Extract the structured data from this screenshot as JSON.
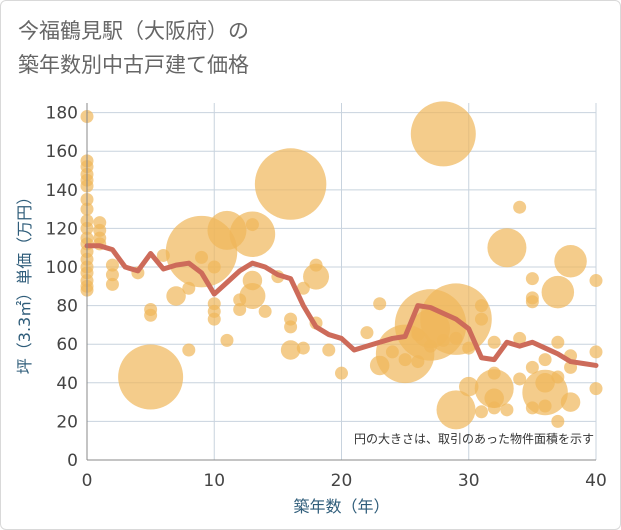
{
  "title_line1": "今福鶴見駅（大阪府）の",
  "title_line2": "築年数別中古戸建て価格",
  "chart_data": {
    "type": "scatter",
    "xlabel": "築年数（年）",
    "ylabel": "坪（3.3㎡）単価（万円）",
    "note": "円の大きさは、取引のあった物件面積を示す",
    "xlim": [
      0,
      40
    ],
    "ylim": [
      0,
      185
    ],
    "x_ticks": [
      0,
      10,
      20,
      30,
      40
    ],
    "y_ticks": [
      0,
      20,
      40,
      60,
      80,
      100,
      120,
      140,
      160,
      180
    ],
    "grid": true,
    "colors": {
      "bubble": "#f0b75a",
      "line": "#cd6b5a",
      "grid": "#c8d3de",
      "axis": "#888888"
    },
    "points": [
      {
        "x": 0,
        "y": 178,
        "s": 1
      },
      {
        "x": 0,
        "y": 155,
        "s": 1
      },
      {
        "x": 0,
        "y": 152,
        "s": 1
      },
      {
        "x": 0,
        "y": 148,
        "s": 1
      },
      {
        "x": 0,
        "y": 145,
        "s": 1
      },
      {
        "x": 0,
        "y": 142,
        "s": 1
      },
      {
        "x": 0,
        "y": 135,
        "s": 1
      },
      {
        "x": 0,
        "y": 130,
        "s": 1
      },
      {
        "x": 0,
        "y": 124,
        "s": 1
      },
      {
        "x": 0,
        "y": 120,
        "s": 1
      },
      {
        "x": 0,
        "y": 115,
        "s": 1
      },
      {
        "x": 0,
        "y": 112,
        "s": 1
      },
      {
        "x": 0,
        "y": 108,
        "s": 1
      },
      {
        "x": 0,
        "y": 104,
        "s": 1
      },
      {
        "x": 0,
        "y": 100,
        "s": 1
      },
      {
        "x": 0,
        "y": 97,
        "s": 1
      },
      {
        "x": 0,
        "y": 93,
        "s": 1
      },
      {
        "x": 0,
        "y": 90,
        "s": 1
      },
      {
        "x": 0,
        "y": 88,
        "s": 1
      },
      {
        "x": 1,
        "y": 123,
        "s": 1
      },
      {
        "x": 1,
        "y": 119,
        "s": 1
      },
      {
        "x": 1,
        "y": 115,
        "s": 1
      },
      {
        "x": 1,
        "y": 112,
        "s": 1
      },
      {
        "x": 2,
        "y": 101,
        "s": 1
      },
      {
        "x": 2,
        "y": 96,
        "s": 1
      },
      {
        "x": 2,
        "y": 91,
        "s": 1
      },
      {
        "x": 4,
        "y": 97,
        "s": 1
      },
      {
        "x": 5,
        "y": 78,
        "s": 1
      },
      {
        "x": 5,
        "y": 75,
        "s": 1
      },
      {
        "x": 5,
        "y": 43,
        "s": 5
      },
      {
        "x": 6,
        "y": 106,
        "s": 1
      },
      {
        "x": 7,
        "y": 85,
        "s": 1.5
      },
      {
        "x": 8,
        "y": 89,
        "s": 1
      },
      {
        "x": 8,
        "y": 57,
        "s": 1
      },
      {
        "x": 9,
        "y": 108,
        "s": 5.5
      },
      {
        "x": 9,
        "y": 105,
        "s": 1
      },
      {
        "x": 10,
        "y": 100,
        "s": 1
      },
      {
        "x": 10,
        "y": 81,
        "s": 1
      },
      {
        "x": 10,
        "y": 77,
        "s": 1
      },
      {
        "x": 10,
        "y": 73,
        "s": 1
      },
      {
        "x": 11,
        "y": 119,
        "s": 3
      },
      {
        "x": 11,
        "y": 62,
        "s": 1
      },
      {
        "x": 12,
        "y": 83,
        "s": 1
      },
      {
        "x": 12,
        "y": 78,
        "s": 1
      },
      {
        "x": 13,
        "y": 117,
        "s": 3.5
      },
      {
        "x": 13,
        "y": 122,
        "s": 1
      },
      {
        "x": 13,
        "y": 93,
        "s": 1.5
      },
      {
        "x": 13,
        "y": 85,
        "s": 2
      },
      {
        "x": 14,
        "y": 77,
        "s": 1
      },
      {
        "x": 15,
        "y": 95,
        "s": 1
      },
      {
        "x": 16,
        "y": 143,
        "s": 5.5
      },
      {
        "x": 16,
        "y": 73,
        "s": 1
      },
      {
        "x": 16,
        "y": 69,
        "s": 1
      },
      {
        "x": 16,
        "y": 57,
        "s": 1.5
      },
      {
        "x": 17,
        "y": 89,
        "s": 1
      },
      {
        "x": 17,
        "y": 58,
        "s": 1
      },
      {
        "x": 18,
        "y": 101,
        "s": 1
      },
      {
        "x": 18,
        "y": 95,
        "s": 2
      },
      {
        "x": 18,
        "y": 71,
        "s": 1
      },
      {
        "x": 19,
        "y": 57,
        "s": 1
      },
      {
        "x": 20,
        "y": 45,
        "s": 1
      },
      {
        "x": 22,
        "y": 66,
        "s": 1
      },
      {
        "x": 23,
        "y": 81,
        "s": 1
      },
      {
        "x": 23,
        "y": 49,
        "s": 1.5
      },
      {
        "x": 24,
        "y": 56,
        "s": 1
      },
      {
        "x": 25,
        "y": 55,
        "s": 4.5
      },
      {
        "x": 25,
        "y": 52,
        "s": 1
      },
      {
        "x": 26,
        "y": 65,
        "s": 1
      },
      {
        "x": 26,
        "y": 51,
        "s": 1
      },
      {
        "x": 27,
        "y": 70,
        "s": 5.5
      },
      {
        "x": 27,
        "y": 68,
        "s": 3
      },
      {
        "x": 27,
        "y": 59,
        "s": 1
      },
      {
        "x": 28,
        "y": 169,
        "s": 5
      },
      {
        "x": 28,
        "y": 62,
        "s": 1
      },
      {
        "x": 29,
        "y": 73,
        "s": 5.5
      },
      {
        "x": 29,
        "y": 63,
        "s": 1
      },
      {
        "x": 29,
        "y": 26,
        "s": 3
      },
      {
        "x": 30,
        "y": 38,
        "s": 1.5
      },
      {
        "x": 30,
        "y": 58,
        "s": 1
      },
      {
        "x": 31,
        "y": 80,
        "s": 1
      },
      {
        "x": 31,
        "y": 73,
        "s": 1
      },
      {
        "x": 31,
        "y": 25,
        "s": 1
      },
      {
        "x": 32,
        "y": 61,
        "s": 1
      },
      {
        "x": 32,
        "y": 45,
        "s": 1
      },
      {
        "x": 32,
        "y": 37,
        "s": 3
      },
      {
        "x": 32,
        "y": 32,
        "s": 1.5
      },
      {
        "x": 32,
        "y": 27,
        "s": 1
      },
      {
        "x": 33,
        "y": 110,
        "s": 3
      },
      {
        "x": 33,
        "y": 26,
        "s": 1
      },
      {
        "x": 34,
        "y": 131,
        "s": 1
      },
      {
        "x": 34,
        "y": 63,
        "s": 1
      },
      {
        "x": 34,
        "y": 42,
        "s": 1
      },
      {
        "x": 35,
        "y": 94,
        "s": 1
      },
      {
        "x": 35,
        "y": 84,
        "s": 1
      },
      {
        "x": 35,
        "y": 82,
        "s": 1
      },
      {
        "x": 35,
        "y": 48,
        "s": 1
      },
      {
        "x": 35,
        "y": 27,
        "s": 1
      },
      {
        "x": 36,
        "y": 52,
        "s": 1
      },
      {
        "x": 36,
        "y": 40,
        "s": 1.5
      },
      {
        "x": 36,
        "y": 35,
        "s": 3.5
      },
      {
        "x": 36,
        "y": 28,
        "s": 1
      },
      {
        "x": 37,
        "y": 87,
        "s": 2.5
      },
      {
        "x": 37,
        "y": 61,
        "s": 1
      },
      {
        "x": 37,
        "y": 43,
        "s": 1
      },
      {
        "x": 37,
        "y": 20,
        "s": 1
      },
      {
        "x": 38,
        "y": 103,
        "s": 2.5
      },
      {
        "x": 38,
        "y": 54,
        "s": 1
      },
      {
        "x": 38,
        "y": 48,
        "s": 1
      },
      {
        "x": 38,
        "y": 30,
        "s": 1.5
      },
      {
        "x": 40,
        "y": 93,
        "s": 1
      },
      {
        "x": 40,
        "y": 56,
        "s": 1
      },
      {
        "x": 40,
        "y": 37,
        "s": 1
      }
    ],
    "line": {
      "x": [
        0,
        1,
        2,
        3,
        4,
        5,
        6,
        7,
        8,
        9,
        10,
        11,
        12,
        13,
        14,
        15,
        16,
        17,
        18,
        19,
        20,
        21,
        22,
        23,
        24,
        25,
        26,
        27,
        28,
        29,
        30,
        31,
        32,
        33,
        34,
        35,
        36,
        37,
        38,
        39,
        40
      ],
      "y": [
        111,
        111,
        109,
        100,
        98,
        107,
        99,
        101,
        102,
        97,
        86,
        92,
        98,
        102,
        100,
        96,
        94,
        80,
        69,
        65,
        63,
        57,
        59,
        61,
        63,
        64,
        80,
        79,
        76,
        73,
        68,
        53,
        52,
        61,
        59,
        61,
        58,
        55,
        51,
        50,
        49
      ]
    }
  }
}
